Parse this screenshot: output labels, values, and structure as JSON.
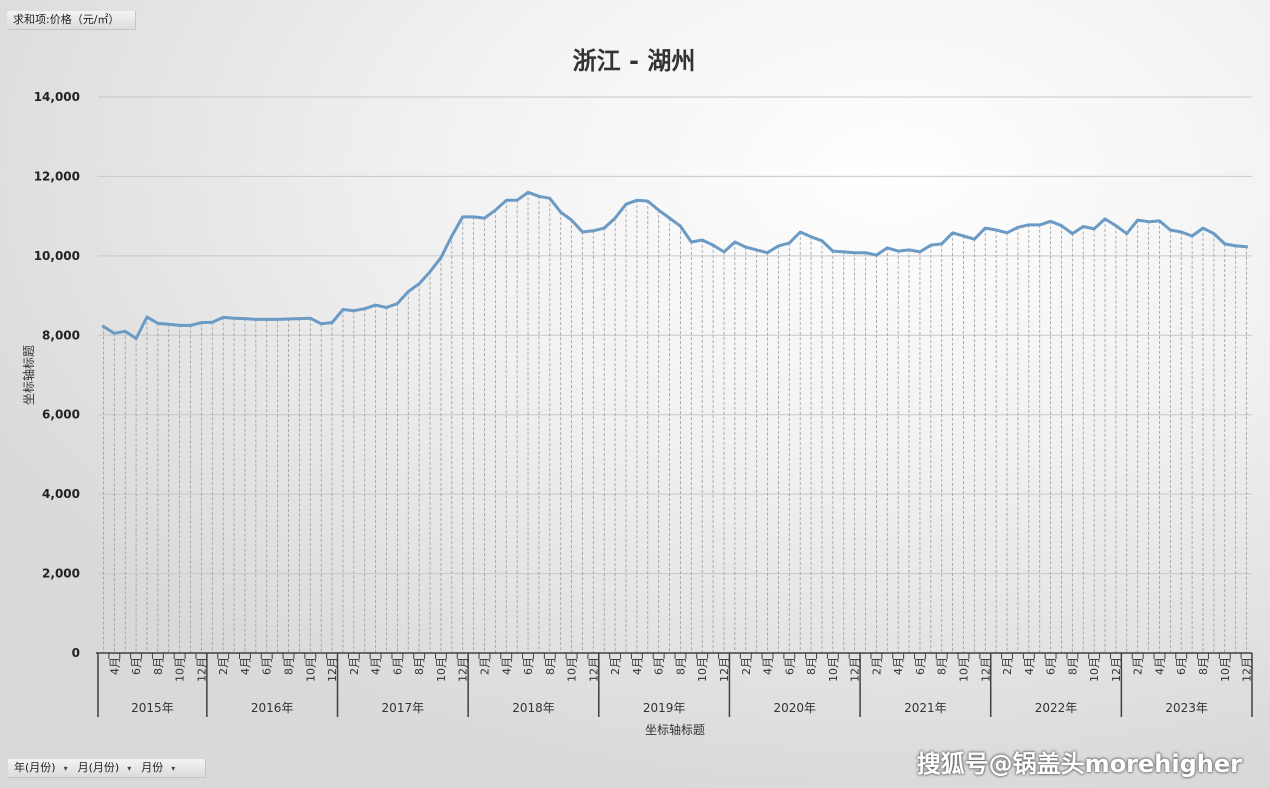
{
  "value_field_label": "求和项:价格（元/㎡）",
  "slicer": {
    "items": [
      {
        "label": "年(月份)",
        "arrow": "▾"
      },
      {
        "label": "月(月份)",
        "arrow": "▾"
      },
      {
        "label": "月份",
        "arrow": "▾"
      }
    ]
  },
  "watermark": "搜狐号@锅盖头morehigher",
  "chart_data": {
    "type": "line",
    "title": "浙江 - 湖州",
    "xlabel": "坐标轴标题",
    "ylabel": "坐标轴标题",
    "ylim": [
      0,
      14000
    ],
    "yticks": [
      0,
      2000,
      4000,
      6000,
      8000,
      10000,
      12000,
      14000
    ],
    "ytick_labels": [
      "0",
      "2,000",
      "4,000",
      "6,000",
      "8,000",
      "10,000",
      "12,000",
      "14,000"
    ],
    "grid": true,
    "colors": {
      "line": "#6b9ac4",
      "grid": "#c8c8c8",
      "axis": "#404040"
    },
    "years": [
      {
        "label": "2015年",
        "months": [
          3,
          4,
          5,
          6,
          7,
          8,
          9,
          10,
          11,
          12
        ]
      },
      {
        "label": "2016年",
        "months": [
          1,
          2,
          3,
          4,
          5,
          6,
          7,
          8,
          9,
          10,
          11,
          12
        ]
      },
      {
        "label": "2017年",
        "months": [
          1,
          2,
          3,
          4,
          5,
          6,
          7,
          8,
          9,
          10,
          11,
          12
        ]
      },
      {
        "label": "2018年",
        "months": [
          1,
          2,
          3,
          4,
          5,
          6,
          7,
          8,
          9,
          10,
          11,
          12
        ]
      },
      {
        "label": "2019年",
        "months": [
          1,
          2,
          3,
          4,
          5,
          6,
          7,
          8,
          9,
          10,
          11,
          12
        ]
      },
      {
        "label": "2020年",
        "months": [
          1,
          2,
          3,
          4,
          5,
          6,
          7,
          8,
          9,
          10,
          11,
          12
        ]
      },
      {
        "label": "2021年",
        "months": [
          1,
          2,
          3,
          4,
          5,
          6,
          7,
          8,
          9,
          10,
          11,
          12
        ]
      },
      {
        "label": "2022年",
        "months": [
          1,
          2,
          3,
          4,
          5,
          6,
          7,
          8,
          9,
          10,
          11,
          12
        ]
      },
      {
        "label": "2023年",
        "months": [
          1,
          2,
          3,
          4,
          5,
          6,
          7,
          8,
          9,
          10,
          11,
          12
        ]
      }
    ],
    "tick_labels": {
      "2015年": [
        "4月",
        "6月",
        "8月",
        "10月",
        "12月"
      ],
      "2016年": [
        "2月",
        "4月",
        "6月",
        "8月",
        "10月",
        "12月"
      ],
      "2017年": [
        "2月",
        "4月",
        "6月",
        "8月",
        "10月",
        "12月"
      ],
      "2018年": [
        "2月",
        "4月",
        "6月",
        "8月",
        "10月",
        "12月"
      ],
      "2019年": [
        "2月",
        "4月",
        "6月",
        "8月",
        "10月",
        "12月"
      ],
      "2020年": [
        "2月",
        "4月",
        "6月",
        "8月",
        "10月",
        "12月"
      ],
      "2021年": [
        "2月",
        "4月",
        "6月",
        "8月",
        "10月",
        "12月"
      ],
      "2022年": [
        "2月",
        "4月",
        "6月",
        "8月",
        "10月",
        "12月"
      ],
      "2023年": [
        "2月",
        "4月",
        "6月",
        "8月",
        "10月",
        "12月"
      ]
    },
    "series": [
      {
        "values": [
          8220,
          8050,
          8100,
          7920,
          8460,
          8300,
          8280,
          8250,
          8250,
          8320,
          8330,
          8450,
          8430,
          8420,
          8400,
          8400,
          8400,
          8410,
          8420,
          8430,
          8290,
          8320,
          8650,
          8620,
          8670,
          8760,
          8700,
          8800,
          9100,
          9300,
          9600,
          9950,
          10500,
          10980,
          10980,
          10950,
          11150,
          11400,
          11400,
          11600,
          11500,
          11450,
          11100,
          10900,
          10600,
          10630,
          10700,
          10950,
          11300,
          11400,
          11380,
          11150,
          10950,
          10750,
          10350,
          10400,
          10270,
          10100,
          10350,
          10220,
          10150,
          10080,
          10250,
          10320,
          10600,
          10480,
          10380,
          10120,
          10100,
          10080,
          10080,
          10020,
          10200,
          10120,
          10150,
          10100,
          10270,
          10300,
          10580,
          10500,
          10420,
          10700,
          10650,
          10580,
          10720,
          10780,
          10780,
          10870,
          10760,
          10560,
          10740,
          10680,
          10930,
          10760,
          10560,
          10900,
          10860,
          10880,
          10650,
          10600,
          10500,
          10700,
          10560,
          10300,
          10250,
          10230
        ]
      }
    ]
  }
}
